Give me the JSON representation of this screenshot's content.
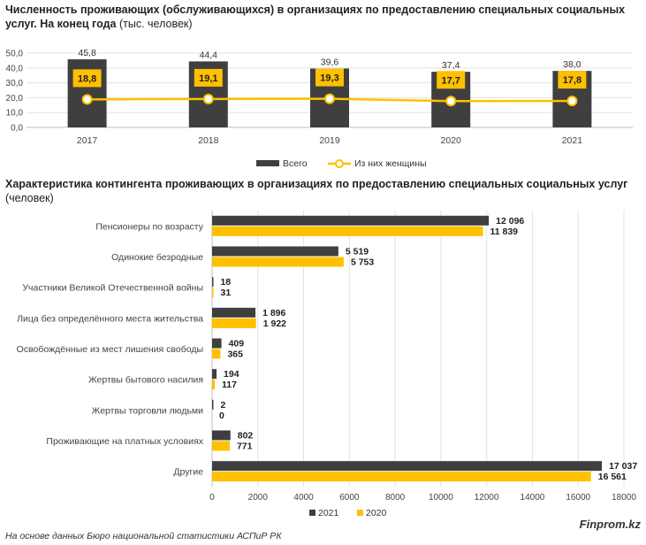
{
  "chart_data": [
    {
      "type": "bar+line",
      "title_bold": "Численность проживающих (обслуживающихся) в организациях по предоставлению специальных социальных услуг. На конец года",
      "title_unit": "(тыс. человек)",
      "categories": [
        "2017",
        "2018",
        "2019",
        "2020",
        "2021"
      ],
      "series": [
        {
          "name": "Всего",
          "type": "bar",
          "values": [
            45.8,
            44.4,
            39.6,
            37.4,
            38.0
          ],
          "labels": [
            "45,8",
            "44,4",
            "39,6",
            "37,4",
            "38,0"
          ],
          "color": "#3f3f3f"
        },
        {
          "name": "Из них женщины",
          "type": "line",
          "values": [
            18.8,
            19.1,
            19.3,
            17.7,
            17.8
          ],
          "labels": [
            "18,8",
            "19,1",
            "19,3",
            "17,7",
            "17,8"
          ],
          "color": "#ffc000"
        }
      ],
      "yticks": [
        "0,0",
        "10,0",
        "20,0",
        "30,0",
        "40,0",
        "50,0"
      ],
      "ylim": [
        0,
        50
      ],
      "legend_position": "bottom",
      "grid": true
    },
    {
      "type": "horizontal-bar",
      "title_bold": "Характеристика контингента проживающих в организациях по предоставлению специальных социальных услуг",
      "title_unit": "(человек)",
      "categories": [
        "Пенсионеры по возрасту",
        "Одинокие безродные",
        "Участники  Великой Отечественной войны",
        "Лица без определённого места жительства",
        "Освобождённые из мест лишения свободы",
        "Жертвы бытового насилия",
        "Жертвы торговли людьми",
        "Проживающие на платных условиях",
        "Другие"
      ],
      "series": [
        {
          "name": "2021",
          "values": [
            12096,
            5519,
            18,
            1896,
            409,
            194,
            2,
            802,
            17037
          ],
          "labels": [
            "12 096",
            "5 519",
            "18",
            "1 896",
            "409",
            "194",
            "2",
            "802",
            "17 037"
          ],
          "color": "#3f3f3f"
        },
        {
          "name": "2020",
          "values": [
            11839,
            5753,
            31,
            1922,
            365,
            117,
            0,
            771,
            16561
          ],
          "labels": [
            "11 839",
            "5 753",
            "31",
            "1 922",
            "365",
            "117",
            "0",
            "771",
            "16 561"
          ],
          "color": "#ffc000"
        }
      ],
      "xticks": [
        "0",
        "2000",
        "4000",
        "6000",
        "8000",
        "10000",
        "12000",
        "14000",
        "16000",
        "18000"
      ],
      "xlim": [
        0,
        18000
      ],
      "legend_position": "bottom",
      "grid": true
    }
  ],
  "footer": {
    "source": "На основе данных Бюро национальной статистики АСПиР РК",
    "brand": "Finprom.kz"
  }
}
